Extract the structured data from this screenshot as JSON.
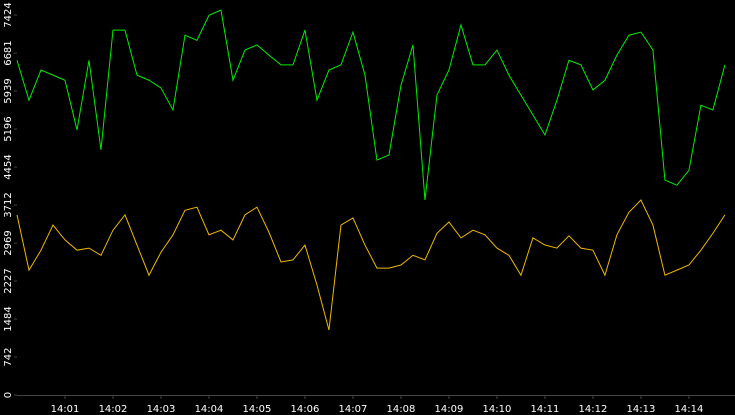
{
  "chart_data": {
    "type": "line",
    "x": [
      0,
      0.25,
      0.5,
      0.75,
      1,
      1.25,
      1.5,
      1.75,
      2,
      2.25,
      2.5,
      2.75,
      3,
      3.25,
      3.5,
      3.75,
      4,
      4.25,
      4.5,
      4.75,
      5,
      5.25,
      5.5,
      5.75,
      6,
      6.25,
      6.5,
      6.75,
      7,
      7.25,
      7.5,
      7.75,
      8,
      8.25,
      8.5,
      8.75,
      9,
      9.25,
      9.5,
      9.75,
      10,
      10.25,
      10.5,
      10.75,
      11,
      11.25,
      11.5,
      11.75,
      12,
      12.25,
      12.5,
      12.75,
      13,
      13.25,
      13.5,
      13.75,
      14,
      14.25,
      14.5,
      14.75
    ],
    "series": [
      {
        "color": "#00ee00",
        "values": [
          6540,
          5760,
          6350,
          6250,
          6150,
          5180,
          6540,
          4790,
          7130,
          7130,
          6250,
          6150,
          6000,
          5570,
          7030,
          6930,
          7420,
          7520,
          6150,
          6740,
          6840,
          6640,
          6450,
          6450,
          7130,
          5760,
          6350,
          6450,
          7090,
          6250,
          4590,
          4690,
          6050,
          6840,
          3810,
          5860,
          6350,
          7230,
          6450,
          6450,
          6740,
          6250,
          5860,
          5470,
          5080,
          5760,
          6540,
          6450,
          5960,
          6150,
          6640,
          7030,
          7090,
          6740,
          4200,
          4100,
          4390,
          5660,
          5570,
          6450
        ]
      },
      {
        "color": "#f0b800",
        "values": [
          3520,
          2440,
          2830,
          3320,
          3030,
          2830,
          2870,
          2730,
          3220,
          3520,
          2930,
          2340,
          2790,
          3130,
          3610,
          3670,
          3130,
          3220,
          3030,
          3520,
          3670,
          3180,
          2600,
          2640,
          2930,
          2150,
          1270,
          3320,
          3460,
          2930,
          2480,
          2480,
          2540,
          2730,
          2640,
          3160,
          3380,
          3070,
          3220,
          3130,
          2870,
          2730,
          2340,
          3070,
          2930,
          2870,
          3110,
          2870,
          2830,
          2340,
          3130,
          3570,
          3810,
          3320,
          2340,
          2440,
          2540,
          2830,
          3160,
          3520
        ]
      }
    ],
    "xlim": [
      0,
      14.96
    ],
    "xticks": [
      {
        "value": 1,
        "label": "14:01"
      },
      {
        "value": 2,
        "label": "14:02"
      },
      {
        "value": 3,
        "label": "14:03"
      },
      {
        "value": 4,
        "label": "14:04"
      },
      {
        "value": 5,
        "label": "14:05"
      },
      {
        "value": 6,
        "label": "14:06"
      },
      {
        "value": 7,
        "label": "14:07"
      },
      {
        "value": 8,
        "label": "14:08"
      },
      {
        "value": 9,
        "label": "14:09"
      },
      {
        "value": 10,
        "label": "14:10"
      },
      {
        "value": 11,
        "label": "14:11"
      },
      {
        "value": 12,
        "label": "14:12"
      },
      {
        "value": 13,
        "label": "14:13"
      },
      {
        "value": 14,
        "label": "14:14"
      }
    ],
    "ylim": [
      0,
      7718
    ],
    "yticks": [
      0,
      742,
      1484,
      2227,
      2969,
      3712,
      4454,
      5196,
      5939,
      6681,
      7424
    ]
  }
}
